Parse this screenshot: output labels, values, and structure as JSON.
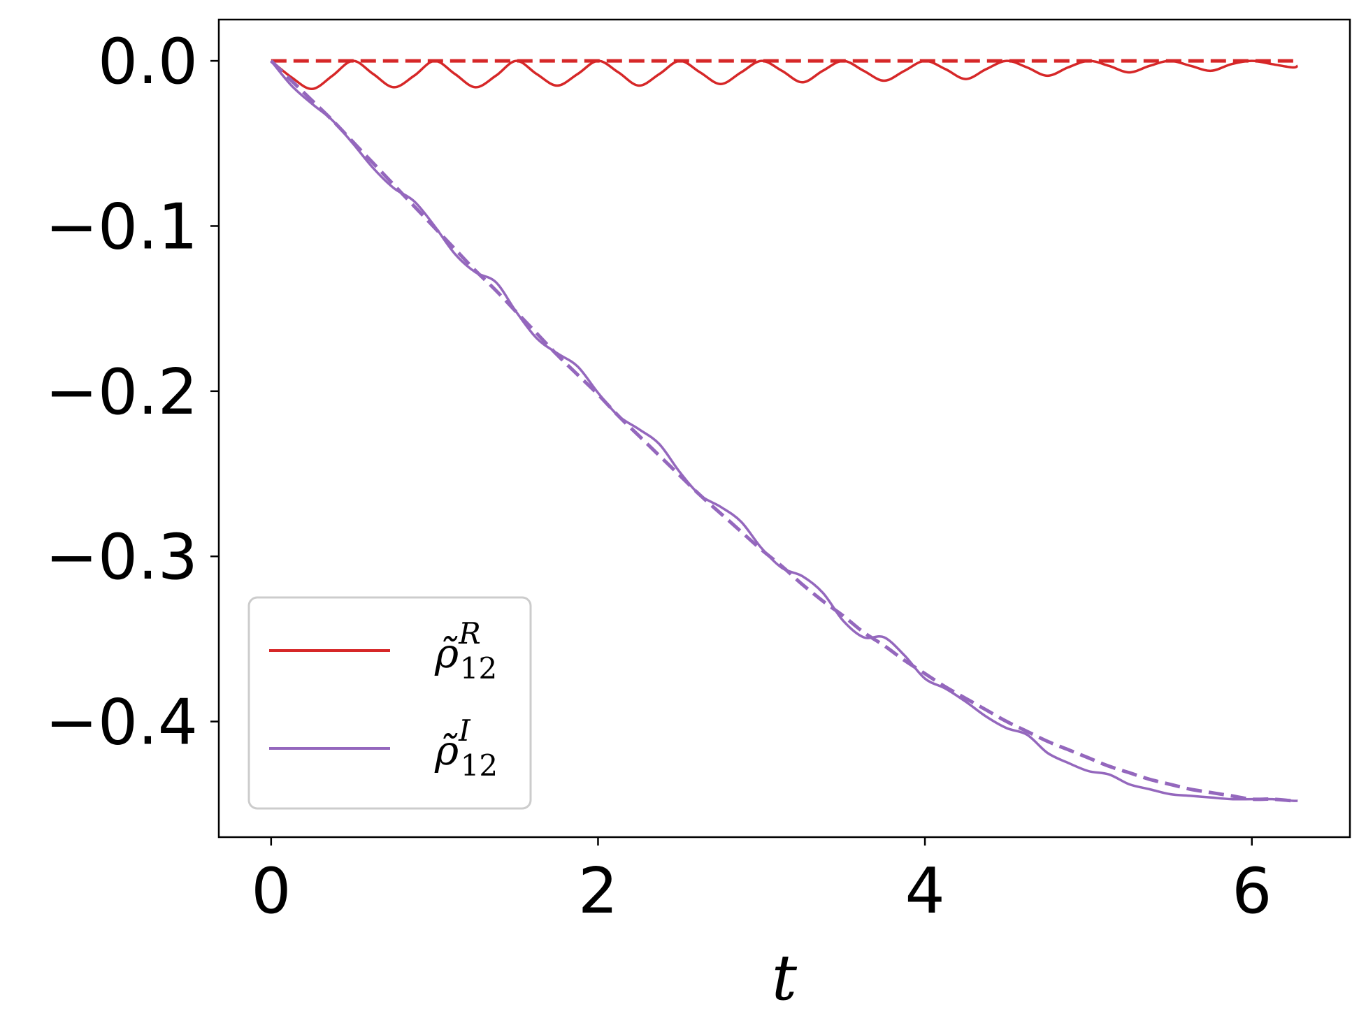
{
  "chart_data": {
    "type": "line",
    "title": "",
    "xlabel": "t",
    "ylabel": "",
    "xlim": [
      -0.32,
      6.6
    ],
    "ylim": [
      -0.47,
      0.025
    ],
    "xticks": [
      0,
      2,
      4,
      6
    ],
    "xtick_labels": [
      "0",
      "2",
      "4",
      "6"
    ],
    "yticks": [
      0.0,
      -0.1,
      -0.2,
      -0.3,
      -0.4
    ],
    "ytick_labels": [
      "0.0",
      "−0.1",
      "−0.2",
      "−0.3",
      "−0.4"
    ],
    "grid": false,
    "legend": {
      "placement": "lower-left",
      "entries": [
        {
          "symbol": "ρ̃",
          "sub": "12",
          "sup": "R",
          "color": "#d62728"
        },
        {
          "symbol": "ρ̃",
          "sub": "12",
          "sup": "I",
          "color": "#9467bd"
        }
      ]
    },
    "x": [
      0,
      0.125,
      0.25,
      0.375,
      0.5,
      0.625,
      0.75,
      0.875,
      1.0,
      1.125,
      1.25,
      1.375,
      1.5,
      1.625,
      1.75,
      1.875,
      2.0,
      2.125,
      2.25,
      2.375,
      2.5,
      2.625,
      2.75,
      2.875,
      3.0,
      3.125,
      3.25,
      3.375,
      3.5,
      3.625,
      3.75,
      3.875,
      4.0,
      4.125,
      4.25,
      4.375,
      4.5,
      4.625,
      4.75,
      4.875,
      5.0,
      5.125,
      5.25,
      5.375,
      5.5,
      5.625,
      5.75,
      5.875,
      6.0,
      6.125,
      6.25,
      6.28
    ],
    "series": [
      {
        "color": "#d62728",
        "dash": false,
        "values": [
          0.0,
          -0.01,
          -0.017,
          -0.009,
          0.0,
          -0.008,
          -0.016,
          -0.009,
          0.0,
          -0.008,
          -0.016,
          -0.009,
          0.0,
          -0.008,
          -0.015,
          -0.008,
          0.0,
          -0.007,
          -0.015,
          -0.008,
          0.0,
          -0.007,
          -0.014,
          -0.007,
          0.0,
          -0.006,
          -0.013,
          -0.006,
          0.0,
          -0.006,
          -0.012,
          -0.006,
          0.0,
          -0.005,
          -0.011,
          -0.005,
          0.0,
          -0.004,
          -0.009,
          -0.004,
          0.0,
          -0.003,
          -0.007,
          -0.003,
          0.0,
          -0.003,
          -0.006,
          -0.002,
          0.0,
          -0.002,
          -0.004,
          -0.003
        ]
      },
      {
        "color": "#d62728",
        "dash": true,
        "values": [
          0.0,
          0.0,
          0.0,
          0.0,
          0.0,
          0.0,
          0.0,
          0.0,
          0.0,
          0.0,
          0.0,
          0.0,
          0.0,
          0.0,
          0.0,
          0.0,
          0.0,
          0.0,
          0.0,
          0.0,
          0.0,
          0.0,
          0.0,
          0.0,
          0.0,
          0.0,
          0.0,
          0.0,
          0.0,
          0.0,
          0.0,
          0.0,
          0.0,
          0.0,
          0.0,
          0.0,
          0.0,
          0.0,
          0.0,
          0.0,
          0.0,
          0.0,
          0.0,
          0.0,
          0.0,
          0.0,
          0.0,
          0.0,
          0.0,
          0.0,
          0.0,
          0.0
        ]
      },
      {
        "color": "#9467bd",
        "dash": false,
        "values": [
          0.0,
          -0.015,
          -0.026,
          -0.036,
          -0.05,
          -0.065,
          -0.077,
          -0.085,
          -0.1,
          -0.117,
          -0.128,
          -0.134,
          -0.152,
          -0.168,
          -0.177,
          -0.185,
          -0.201,
          -0.215,
          -0.223,
          -0.232,
          -0.249,
          -0.263,
          -0.27,
          -0.279,
          -0.295,
          -0.307,
          -0.312,
          -0.322,
          -0.339,
          -0.349,
          -0.349,
          -0.36,
          -0.374,
          -0.38,
          -0.388,
          -0.397,
          -0.404,
          -0.408,
          -0.419,
          -0.425,
          -0.43,
          -0.432,
          -0.438,
          -0.441,
          -0.444,
          -0.445,
          -0.446,
          -0.447,
          -0.447,
          -0.447,
          -0.448,
          -0.448
        ]
      },
      {
        "color": "#9467bd",
        "dash": true,
        "values": [
          0.0,
          -0.012,
          -0.024,
          -0.036,
          -0.049,
          -0.062,
          -0.075,
          -0.088,
          -0.101,
          -0.114,
          -0.127,
          -0.139,
          -0.152,
          -0.165,
          -0.178,
          -0.19,
          -0.202,
          -0.215,
          -0.227,
          -0.239,
          -0.251,
          -0.263,
          -0.274,
          -0.285,
          -0.296,
          -0.306,
          -0.317,
          -0.327,
          -0.336,
          -0.346,
          -0.354,
          -0.363,
          -0.371,
          -0.379,
          -0.386,
          -0.393,
          -0.4,
          -0.406,
          -0.412,
          -0.417,
          -0.422,
          -0.427,
          -0.431,
          -0.435,
          -0.438,
          -0.441,
          -0.443,
          -0.445,
          -0.447,
          -0.447,
          -0.448,
          -0.448
        ]
      }
    ]
  }
}
